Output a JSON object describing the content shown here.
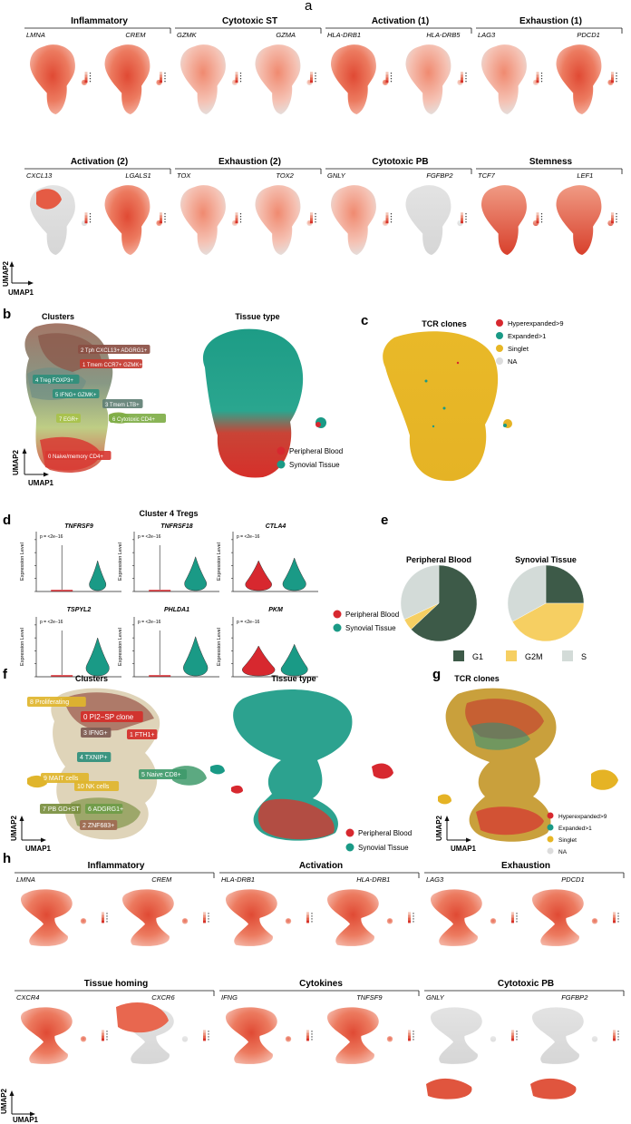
{
  "panel_labels": {
    "a": "a",
    "b": "b",
    "c": "c",
    "d": "d",
    "e": "e",
    "f": "f",
    "g": "g",
    "h": "h"
  },
  "axes": {
    "umap1": "UMAP1",
    "umap2": "UMAP2",
    "expr": "Expression Level"
  },
  "panel_a": {
    "row1": [
      {
        "title": "Inflammatory",
        "genes": [
          "LMNA",
          "CREM"
        ]
      },
      {
        "title": "Cytotoxic ST",
        "genes": [
          "GZMK",
          "GZMA"
        ]
      },
      {
        "title": "Activation (1)",
        "genes": [
          "HLA-DRB1",
          "HLA-DRB5"
        ]
      },
      {
        "title": "Exhaustion (1)",
        "genes": [
          "LAG3",
          "PDCD1"
        ]
      }
    ],
    "row2": [
      {
        "title": "Activation (2)",
        "genes": [
          "CXCL13",
          "LGALS1"
        ]
      },
      {
        "title": "Exhaustion (2)",
        "genes": [
          "TOX",
          "TOX2"
        ]
      },
      {
        "title": "Cytotoxic PB",
        "genes": [
          "GNLY",
          "FGFBP2"
        ]
      },
      {
        "title": "Stemness",
        "genes": [
          "TCF7",
          "LEF1"
        ]
      }
    ]
  },
  "panel_b": {
    "clusters_title": "Clusters",
    "tissue_title": "Tissue type",
    "cluster_labels": [
      "2 Tph CXCL13+ ADGRG1+",
      "4 Treg FOXP3+",
      "1 Tmem CCR7+ GZMK+",
      "5 IFNG+ GZMK+",
      "3 Tmem LTB+",
      "7 EGR+",
      "6 Cytotoxic CD4+",
      "0 Naive/memory CD4+"
    ],
    "legend": [
      "Peripheral Blood",
      "Synovial Tissue"
    ]
  },
  "panel_c": {
    "title": "TCR clones",
    "legend": [
      "Hyperexpanded>9",
      "Expanded>1",
      "Singlet",
      "NA"
    ]
  },
  "panel_d": {
    "title": "Cluster 4 Tregs",
    "genes": [
      "TNFRSF9",
      "TNFRSF18",
      "CTLA4",
      "TSPYL2",
      "PHLDA1",
      "PKM"
    ],
    "pvalue": "p = <2e−16",
    "legend": [
      "Peripheral Blood",
      "Synovial Tissue"
    ]
  },
  "panel_e": {
    "titles": [
      "Peripheral Blood",
      "Synovial Tissue"
    ],
    "legend": [
      "G1",
      "G2M",
      "S"
    ]
  },
  "panel_f": {
    "clusters_title": "Clusters",
    "tissue_title": "Tissue type",
    "cluster_labels": [
      "8 Proliferating",
      "0 PI2−SP clone",
      "3 IFNG+",
      "1 FTH1+",
      "4 TXNIP+",
      "5 Naive CD8+",
      "9 MAIT cells",
      "10 NK cells",
      "7 PB GD+ST",
      "6 ADGRG1+",
      "2 ZNF683+"
    ],
    "legend": [
      "Peripheral Blood",
      "Synovial Tissue"
    ]
  },
  "panel_g": {
    "title": "TCR clones",
    "legend": [
      "Hyperexpanded>9",
      "Expanded>1",
      "Singlet",
      "NA"
    ]
  },
  "panel_h": {
    "row1": [
      {
        "title": "Inflammatory",
        "genes": [
          "LMNA",
          "CREM"
        ]
      },
      {
        "title": "Activation",
        "genes": [
          "HLA-DRB1",
          "HLA-DRB1"
        ]
      },
      {
        "title": "Exhaustion",
        "genes": [
          "LAG3",
          "PDCD1"
        ]
      }
    ],
    "row2": [
      {
        "title": "Tissue homing",
        "genes": [
          "CXCR4",
          "CXCR6"
        ]
      },
      {
        "title": "Cytokines",
        "genes": [
          "IFNG",
          "TNFSF9"
        ]
      },
      {
        "title": "Cytotoxic PB",
        "genes": [
          "GNLY",
          "FGFBP2"
        ]
      }
    ]
  },
  "colors": {
    "red": "#d7282f",
    "teal": "#1a9a86",
    "gold": "#e7b625",
    "grey": "#d9d9d9",
    "g1": "#3d5a48",
    "g2m": "#f6cf62",
    "s": "#d3dbd8",
    "salmon": "#e8604a"
  },
  "chart_data": [
    {
      "type": "pie",
      "title": "Peripheral Blood",
      "categories": [
        "G1",
        "G2M",
        "S"
      ],
      "values": [
        63,
        5,
        32
      ]
    },
    {
      "type": "pie",
      "title": "Synovial Tissue",
      "categories": [
        "G1",
        "G2M",
        "S"
      ],
      "values": [
        25,
        42,
        33
      ]
    },
    {
      "type": "violin",
      "title": "Cluster 4 Tregs",
      "genes": [
        "TNFRSF9",
        "TNFRSF18",
        "CTLA4",
        "TSPYL2",
        "PHLDA1",
        "PKM"
      ],
      "groups": [
        "Peripheral Blood",
        "Synovial Tissue"
      ]
    }
  ]
}
